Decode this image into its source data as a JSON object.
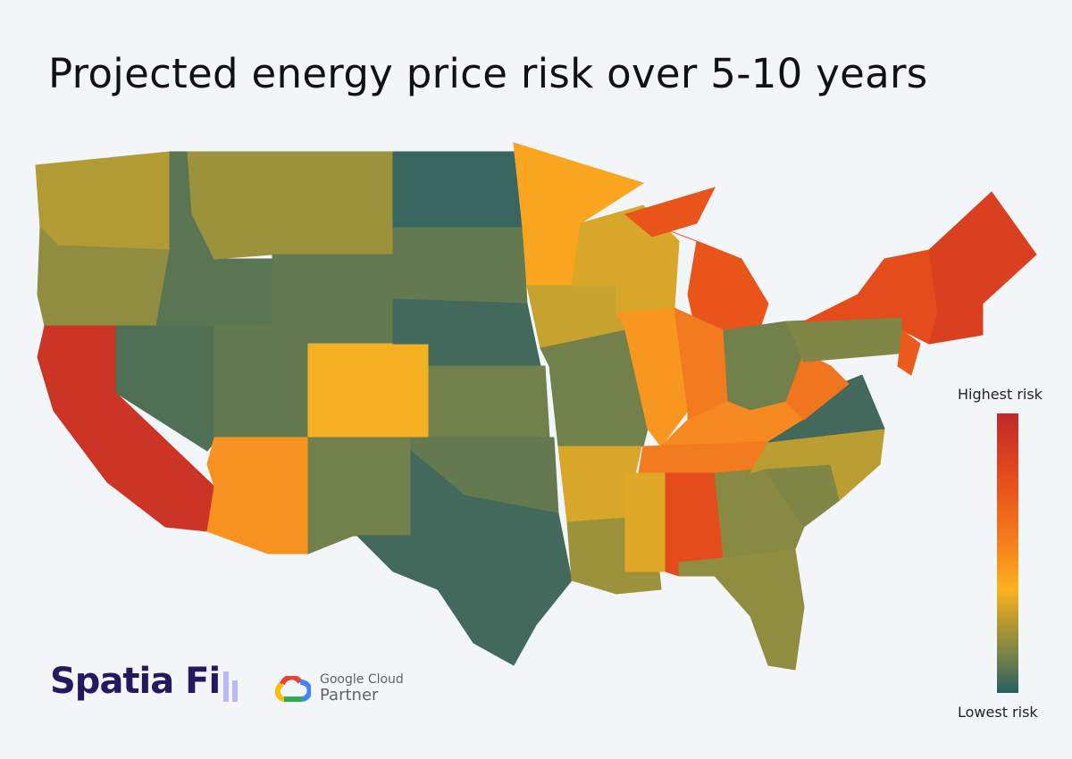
{
  "title": "Projected energy price risk over 5-10 years",
  "legend": {
    "high_label": "Highest risk",
    "low_label": "Lowest risk",
    "colors": [
      "#2a5e63",
      "#7a8448",
      "#c0a030",
      "#fbb21f",
      "#f58520",
      "#e8501a",
      "#c0282a"
    ]
  },
  "map": {
    "region_risk": {
      "WA": 0.3,
      "OR": 0.22,
      "CA": 0.95,
      "NV": 0.08,
      "ID": 0.1,
      "MT": 0.25,
      "WY": 0.12,
      "UT": 0.12,
      "AZ": 0.62,
      "CO": 0.48,
      "NM": 0.15,
      "ND": 0.03,
      "SD": 0.12,
      "NE": 0.05,
      "KS": 0.15,
      "OK": 0.12,
      "TX": 0.05,
      "MN": 0.55,
      "IA": 0.35,
      "MO": 0.15,
      "AR": 0.4,
      "LA": 0.25,
      "WI": 0.4,
      "IL": 0.6,
      "MI": 0.82,
      "IN": 0.7,
      "OH": 0.15,
      "KY": 0.65,
      "TN": 0.7,
      "MS": 0.42,
      "AL": 0.85,
      "GA": 0.2,
      "FL": 0.22,
      "SC": 0.18,
      "NC": 0.32,
      "VA": 0.05,
      "WV": 0.72,
      "PA": 0.18,
      "NY": 0.85,
      "NJ": 0.8,
      "NE_US": 0.9
    }
  },
  "logos": {
    "spatiafi": "Spatia Fi",
    "google_top": "Google Cloud",
    "google_bottom": "Partner"
  }
}
